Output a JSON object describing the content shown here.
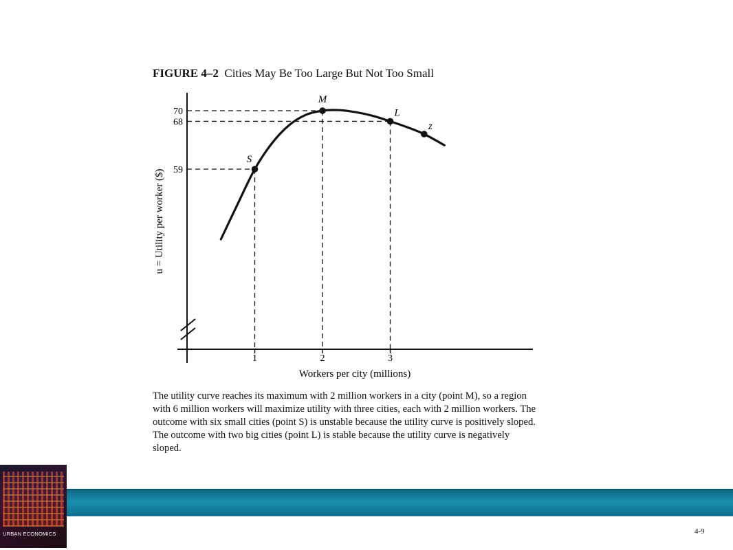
{
  "figure": {
    "number": "FIGURE 4–2",
    "title": "Cities May Be Too Large But Not Too Small"
  },
  "caption": "The utility curve reaches its maximum with 2 million workers in a city (point M), so a region with 6 million workers will maximize utility with three cities, each with 2 million workers. The outcome with six small cities (point S) is unstable because the utility curve is positively sloped. The outcome with two big cities (point L) is stable because the utility curve is negatively sloped.",
  "chart_data": {
    "type": "line",
    "xlabel": "Workers per city (millions)",
    "ylabel": "u = Utility per worker ($)",
    "x_ticks": [
      "1",
      "2",
      "3"
    ],
    "y_ticks": [
      "59",
      "68",
      "70"
    ],
    "xlim": [
      0,
      5
    ],
    "ylim": [
      44,
      72
    ],
    "y_axis_break": true,
    "curve": {
      "x": [
        0.5,
        0.75,
        1.0,
        1.25,
        1.5,
        1.75,
        2.0,
        2.25,
        2.5,
        2.75,
        3.0,
        3.25,
        3.5,
        3.8
      ],
      "y": [
        45.8,
        52.5,
        59,
        63.8,
        67.2,
        69.2,
        70,
        70.1,
        69.7,
        69,
        68,
        66.9,
        65.6,
        63.5
      ]
    },
    "points": [
      {
        "label": "S",
        "x": 1,
        "y": 59
      },
      {
        "label": "M",
        "x": 2,
        "y": 70
      },
      {
        "label": "L",
        "x": 3,
        "y": 68
      },
      {
        "label": "z",
        "x": 3.5,
        "y": 65.6
      }
    ],
    "guide_lines": true,
    "grid": false,
    "legend": "none"
  },
  "footer": {
    "book_title": "URBAN ECONOMICS",
    "slide_number": "4-9"
  },
  "colors": {
    "banner": "#1a8fae",
    "ink": "#111111"
  }
}
